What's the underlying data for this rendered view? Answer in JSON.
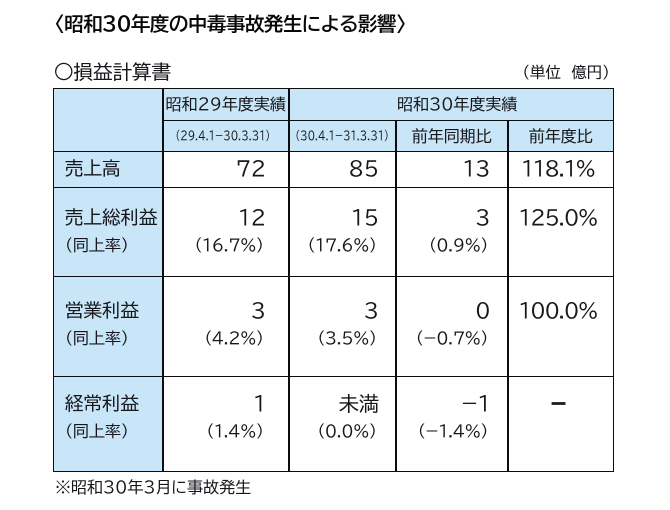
{
  "page": {
    "title": "〈昭和30年度の中毒事故発生による影響〉",
    "caption": "○損益計算書",
    "unit_note": "（単位　億円）",
    "footnote": "※昭和30年3月に事故発生"
  },
  "colors": {
    "header_fill": "#c9e5f8",
    "grid_line": "#0c0d11",
    "text": "#17181c",
    "background": "#ffffff"
  },
  "table": {
    "header": {
      "col_29": {
        "label": "昭和29年度実績",
        "period": "(29.4.1−30.3.31)"
      },
      "col_30": {
        "label": "昭和30年度実績",
        "period": "(30.4.1−31.3.31)",
        "sub_yoy": "前年同期比",
        "sub_ratio": "前年度比"
      }
    },
    "rows": [
      {
        "label": "売上高",
        "sublabel": "",
        "s29": {
          "value": "72",
          "pct": ""
        },
        "s30": {
          "value": "85",
          "pct": ""
        },
        "yoy": {
          "value": "13",
          "pct": ""
        },
        "ratio": "118.1%"
      },
      {
        "label": "売上総利益",
        "sublabel": "(同上率)",
        "s29": {
          "value": "12",
          "pct": "(16.7%)"
        },
        "s30": {
          "value": "15",
          "pct": "(17.6%)"
        },
        "yoy": {
          "value": "3",
          "pct": "(0.9%)"
        },
        "ratio": "125.0%"
      },
      {
        "label": "営業利益",
        "sublabel": "(同上率)",
        "s29": {
          "value": "3",
          "pct": "(4.2%)"
        },
        "s30": {
          "value": "3",
          "pct": "(3.5%)"
        },
        "yoy": {
          "value": "0",
          "pct": "(−0.7%)"
        },
        "ratio": "100.0%"
      },
      {
        "label": "経常利益",
        "sublabel": "(同上率)",
        "s29": {
          "value": "1",
          "pct": "(1.4%)"
        },
        "s30": {
          "value": "未満",
          "pct": "(0.0%)"
        },
        "yoy": {
          "value": "−1",
          "pct": "(−1.4%)"
        },
        "ratio": "−"
      }
    ]
  }
}
